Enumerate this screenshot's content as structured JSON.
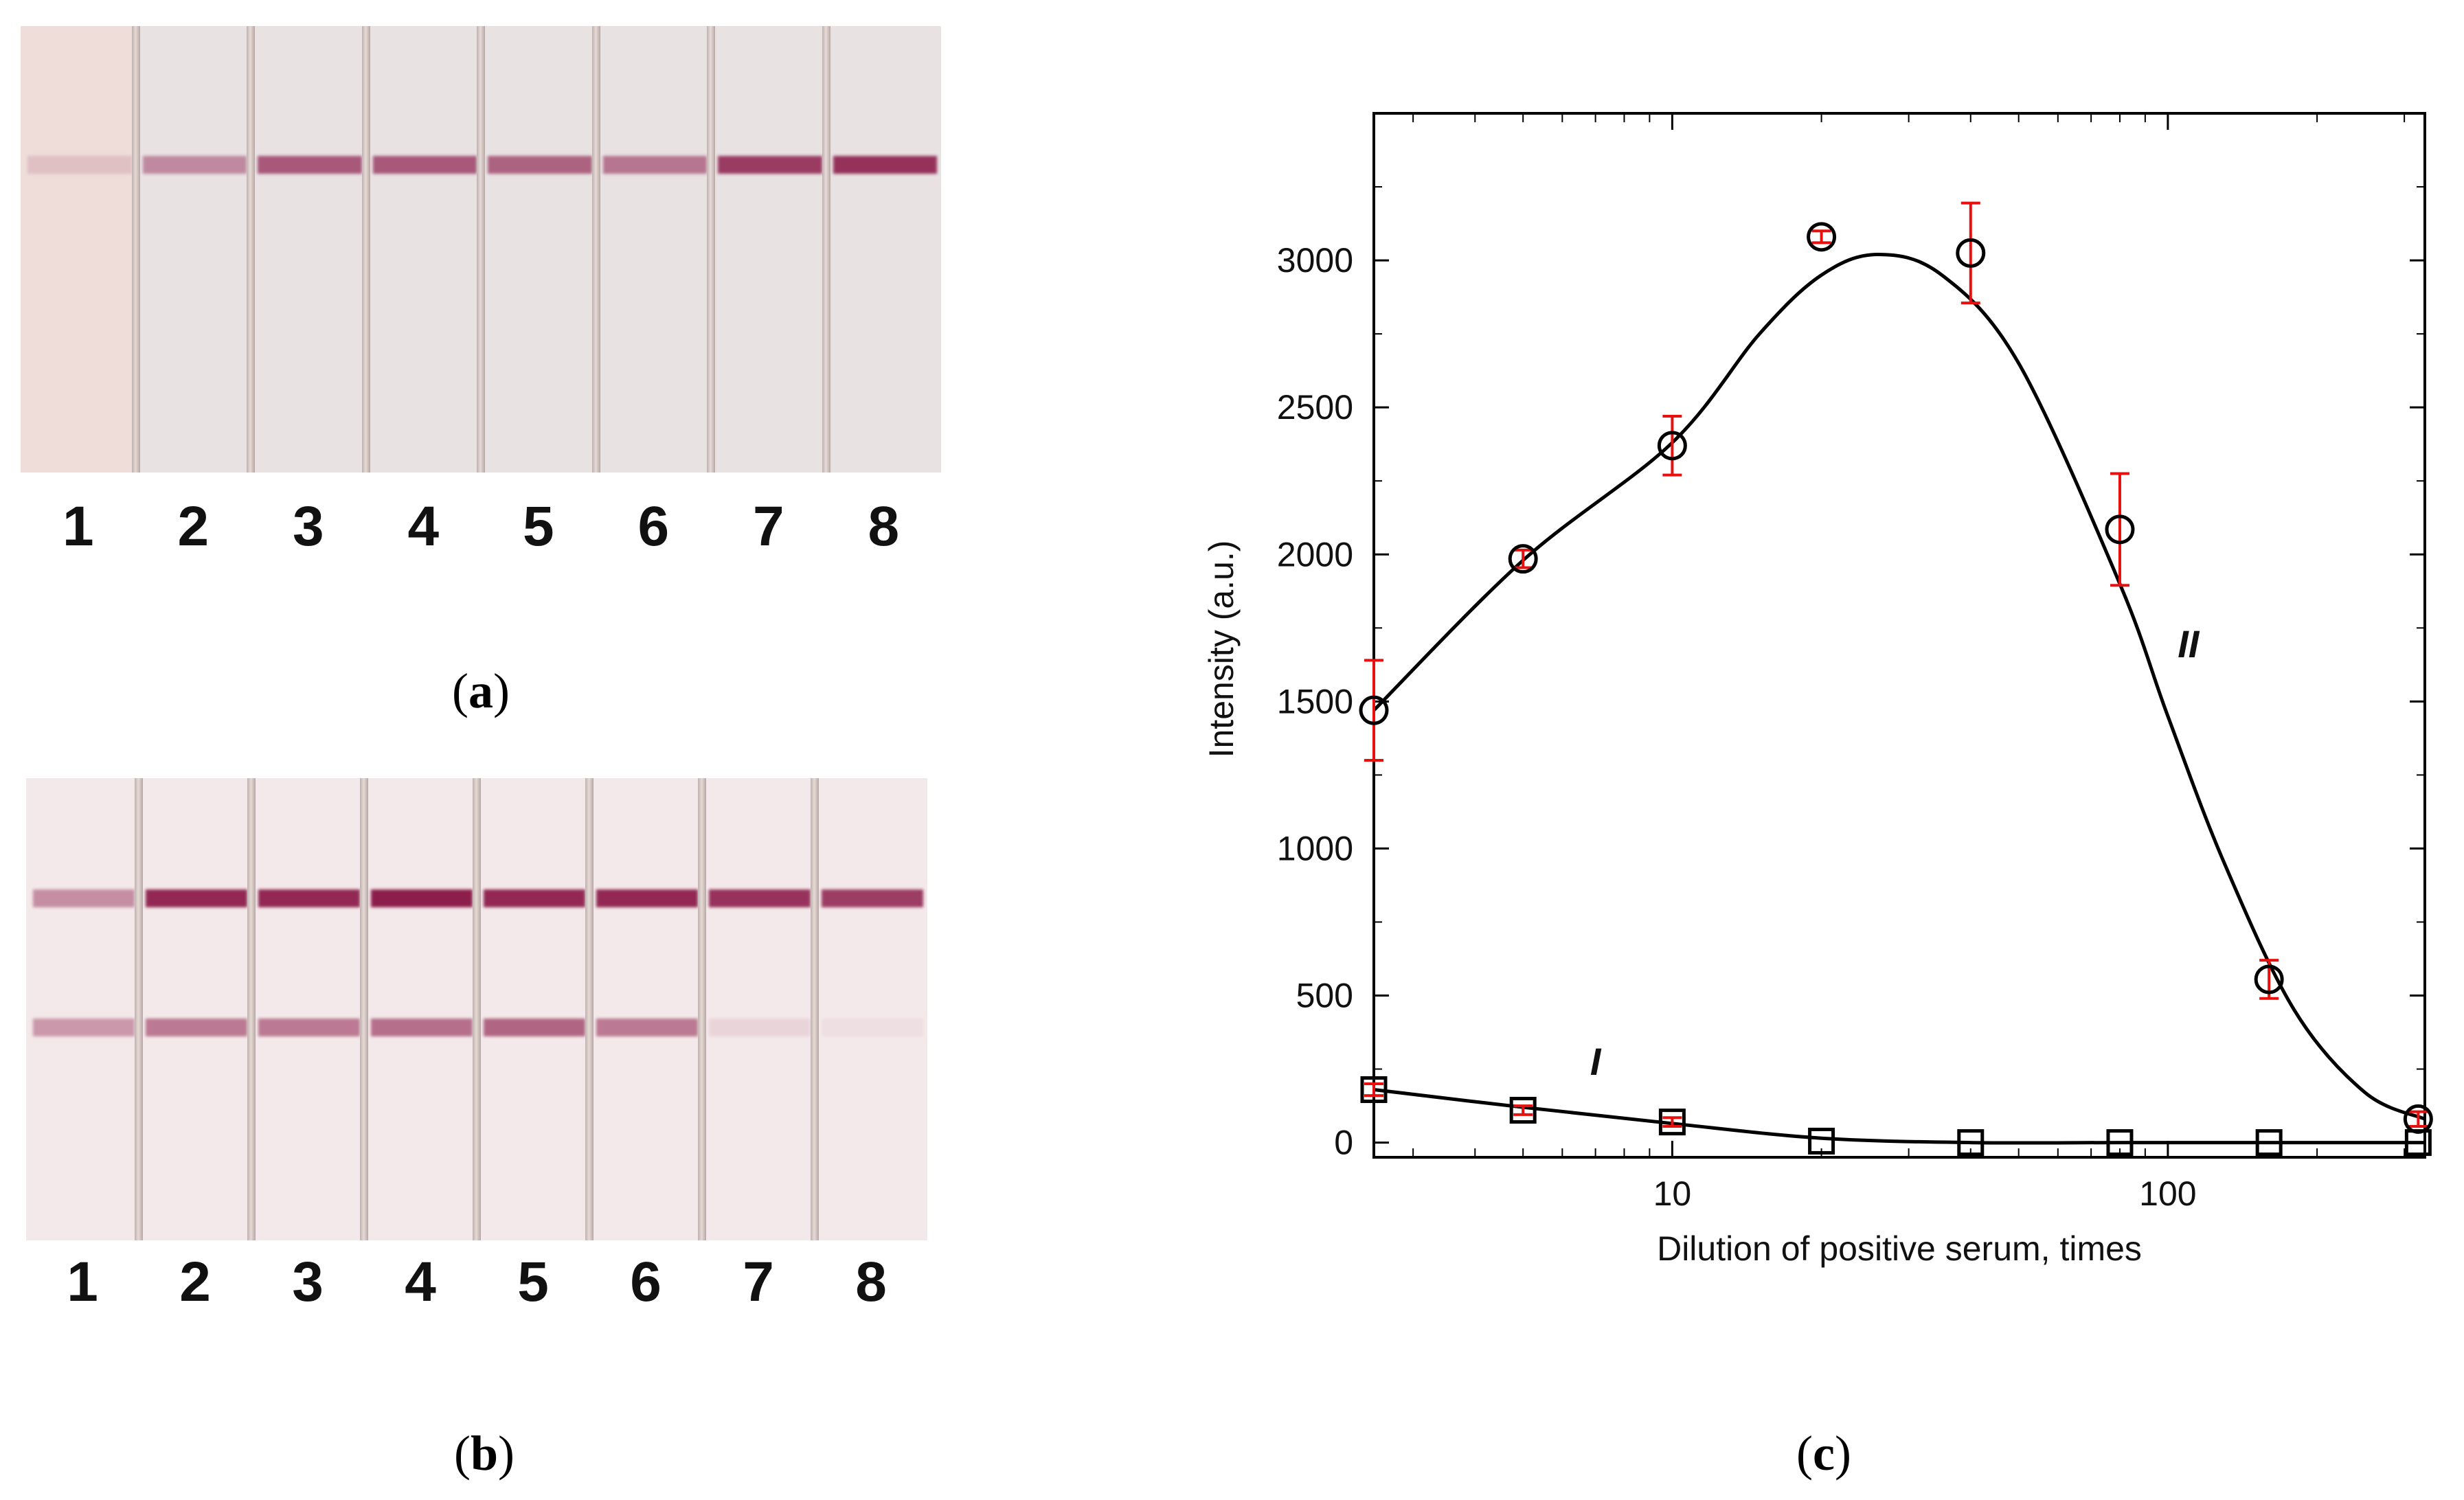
{
  "panel_a": {
    "caption": "a",
    "lane_labels": [
      "1",
      "2",
      "3",
      "4",
      "5",
      "6",
      "7",
      "8"
    ],
    "test_line_intensity": [
      0.15,
      0.45,
      0.7,
      0.7,
      0.65,
      0.55,
      0.85,
      0.9
    ]
  },
  "panel_b": {
    "caption": "b",
    "lane_labels": [
      "1",
      "2",
      "3",
      "4",
      "5",
      "6",
      "7",
      "8"
    ],
    "control_line_intensity": [
      0.45,
      0.95,
      0.95,
      1.0,
      0.95,
      0.95,
      0.9,
      0.85
    ],
    "test_line_intensity": [
      0.4,
      0.55,
      0.55,
      0.6,
      0.65,
      0.55,
      0.1,
      0.05
    ]
  },
  "panel_c": {
    "caption": "c"
  },
  "chart_data": {
    "type": "scatter",
    "xscale": "log",
    "xlabel": "Dilution of positive serum, times",
    "ylabel": "Intensity (a.u.)",
    "xlim": [
      2.5,
      330
    ],
    "ylim": [
      -50,
      3500
    ],
    "x_ticks": [
      10,
      100
    ],
    "x_tick_labels": [
      "10",
      "100"
    ],
    "y_ticks": [
      0,
      500,
      1000,
      1500,
      2000,
      2500,
      3000
    ],
    "y_tick_labels": [
      "0",
      "500",
      "1000",
      "1500",
      "2000",
      "2500",
      "3000"
    ],
    "grid": false,
    "series": [
      {
        "name": "I",
        "marker": "square",
        "x": [
          2.5,
          5,
          10,
          20,
          40,
          80,
          160,
          320
        ],
        "y": [
          180,
          110,
          70,
          5,
          0,
          0,
          0,
          0
        ],
        "err": [
          20,
          15,
          15,
          0,
          0,
          0,
          0,
          0
        ],
        "fit": {
          "x": [
            2.5,
            5,
            10,
            20,
            40,
            80,
            160,
            330
          ],
          "y": [
            180,
            120,
            65,
            15,
            0,
            0,
            0,
            0
          ]
        }
      },
      {
        "name": "II",
        "marker": "circle",
        "x": [
          2.5,
          5,
          10,
          20,
          40,
          80,
          160,
          320
        ],
        "y": [
          1470,
          1985,
          2370,
          3080,
          3025,
          2085,
          555,
          80
        ],
        "err": [
          170,
          30,
          100,
          20,
          170,
          190,
          65,
          25
        ],
        "fit": {
          "x": [
            2.5,
            5,
            10,
            15,
            20,
            26,
            35,
            50,
            80,
            100,
            130,
            180,
            250,
            330
          ],
          "y": [
            1470,
            1980,
            2380,
            2750,
            2950,
            3020,
            2950,
            2650,
            1900,
            1450,
            950,
            450,
            170,
            80
          ]
        }
      }
    ],
    "error_bar_color": "#e8100e",
    "marker_color": "#000000",
    "curve_labels": [
      {
        "text": "I",
        "x": 7.0,
        "y": 230
      },
      {
        "text": "II",
        "x": 110,
        "y": 1650
      }
    ]
  }
}
